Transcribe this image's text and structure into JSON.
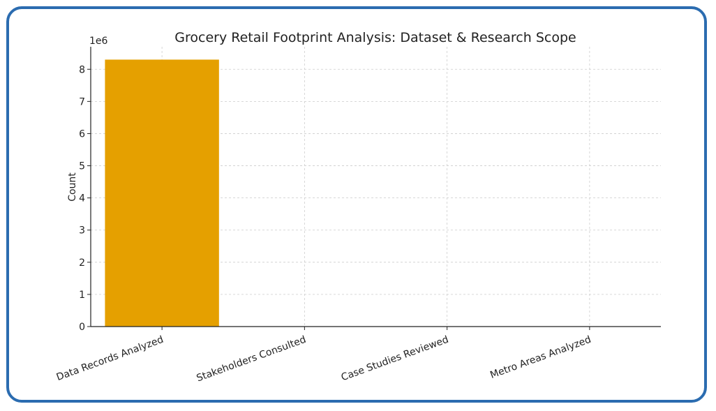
{
  "chart_data": {
    "type": "bar",
    "title": "Grocery Retail Footprint Analysis: Dataset & Research Scope",
    "xlabel": "",
    "ylabel": "Count",
    "scale_label": "1e6",
    "categories": [
      "Data Records Analyzed",
      "Stakeholders Consulted",
      "Case Studies Reviewed",
      "Metro Areas Analyzed"
    ],
    "values": [
      8300000,
      0,
      0,
      0
    ],
    "ylim": [
      0,
      8700000
    ],
    "yticks": [
      0,
      1000000,
      2000000,
      3000000,
      4000000,
      5000000,
      6000000,
      7000000,
      8000000
    ],
    "ytick_labels": [
      "0",
      "1",
      "2",
      "3",
      "4",
      "5",
      "6",
      "7",
      "8"
    ],
    "grid": true,
    "bar_color": "#e5a000"
  },
  "frame_color": "#2b6cb0"
}
